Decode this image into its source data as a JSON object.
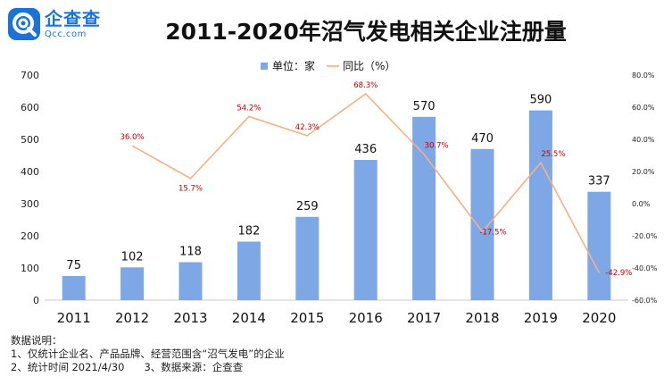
{
  "header": {
    "logo_cn": "企查查",
    "logo_en": "Qcc.com",
    "title": "2011-2020年沼气发电相关企业注册量"
  },
  "chart_data": {
    "type": "bar",
    "title": "2011-2020年沼气发电相关企业注册量",
    "categories": [
      "2011",
      "2012",
      "2013",
      "2014",
      "2015",
      "2016",
      "2017",
      "2018",
      "2019",
      "2020"
    ],
    "series": [
      {
        "name": "单位：家",
        "type": "bar",
        "axis": "left",
        "values": [
          75,
          102,
          118,
          182,
          259,
          436,
          570,
          470,
          590,
          337
        ],
        "labels": [
          "75",
          "102",
          "118",
          "182",
          "259",
          "436",
          "570",
          "470",
          "590",
          "337"
        ]
      },
      {
        "name": "同比（%）",
        "type": "line",
        "axis": "right",
        "values": [
          null,
          36.0,
          15.7,
          54.2,
          42.3,
          68.3,
          30.7,
          -17.5,
          25.5,
          -42.9
        ],
        "labels": [
          "",
          "36.0%",
          "15.7%",
          "54.2%",
          "42.3%",
          "68.3%",
          "30.7%",
          "-17.5%",
          "25.5%",
          "-42.9%"
        ]
      }
    ],
    "y_left": {
      "min": 0,
      "max": 700,
      "ticks": [
        "0",
        "100",
        "200",
        "300",
        "400",
        "500",
        "600",
        "700"
      ]
    },
    "y_right": {
      "min": -60,
      "max": 80,
      "ticks": [
        "-60.0%",
        "-40.0%",
        "-20.0%",
        "0.0%",
        "20.0%",
        "40.0%",
        "60.0%",
        "80.0%"
      ]
    },
    "legend": {
      "position": "top-center",
      "bar_label": "单位：家",
      "line_label": "同比（%）"
    },
    "colors": {
      "bar": "#7ea7e5",
      "line": "#f4b183",
      "line_label": "#c00000",
      "axis_text": "#222222"
    }
  },
  "notes": {
    "heading": "数据说明：",
    "line1": "1、仅统计企业名、产品品牌、经营范围含“沼气发电”的企业",
    "line2a": "2、统计时间 2021/4/30",
    "line2b": "3、数据来源：企查查"
  }
}
